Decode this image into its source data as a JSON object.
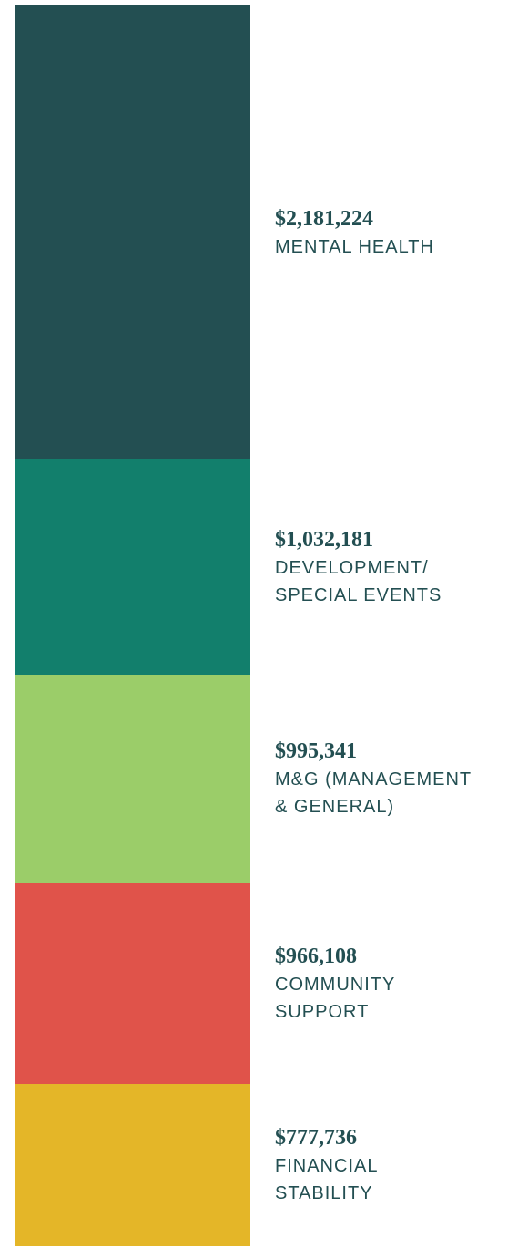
{
  "chart_data": {
    "type": "stacked-bar",
    "series": [
      {
        "name": "MENTAL HEALTH",
        "color": "#234f52",
        "values": [
          2181224
        ],
        "value_labels": [
          "$2,181,224"
        ]
      },
      {
        "name": "DEVELOPMENT/ SPECIAL EVENTS",
        "color": "#127f6c",
        "values": [
          1032181
        ],
        "value_labels": [
          "$1,032,181"
        ]
      },
      {
        "name": "M&G (MANAGEMENT & GENERAL)",
        "color": "#9bcd69",
        "values": [
          995341
        ],
        "value_labels": [
          "$995,341"
        ]
      },
      {
        "name": "COMMUNITY SUPPORT",
        "color": "#e0534a",
        "values": [
          966108
        ],
        "value_labels": [
          "$966,108"
        ]
      },
      {
        "name": "FINANCIAL STABILITY",
        "color": "#e4b628",
        "values": [
          777736
        ],
        "value_labels": [
          "$777,736"
        ]
      }
    ]
  }
}
